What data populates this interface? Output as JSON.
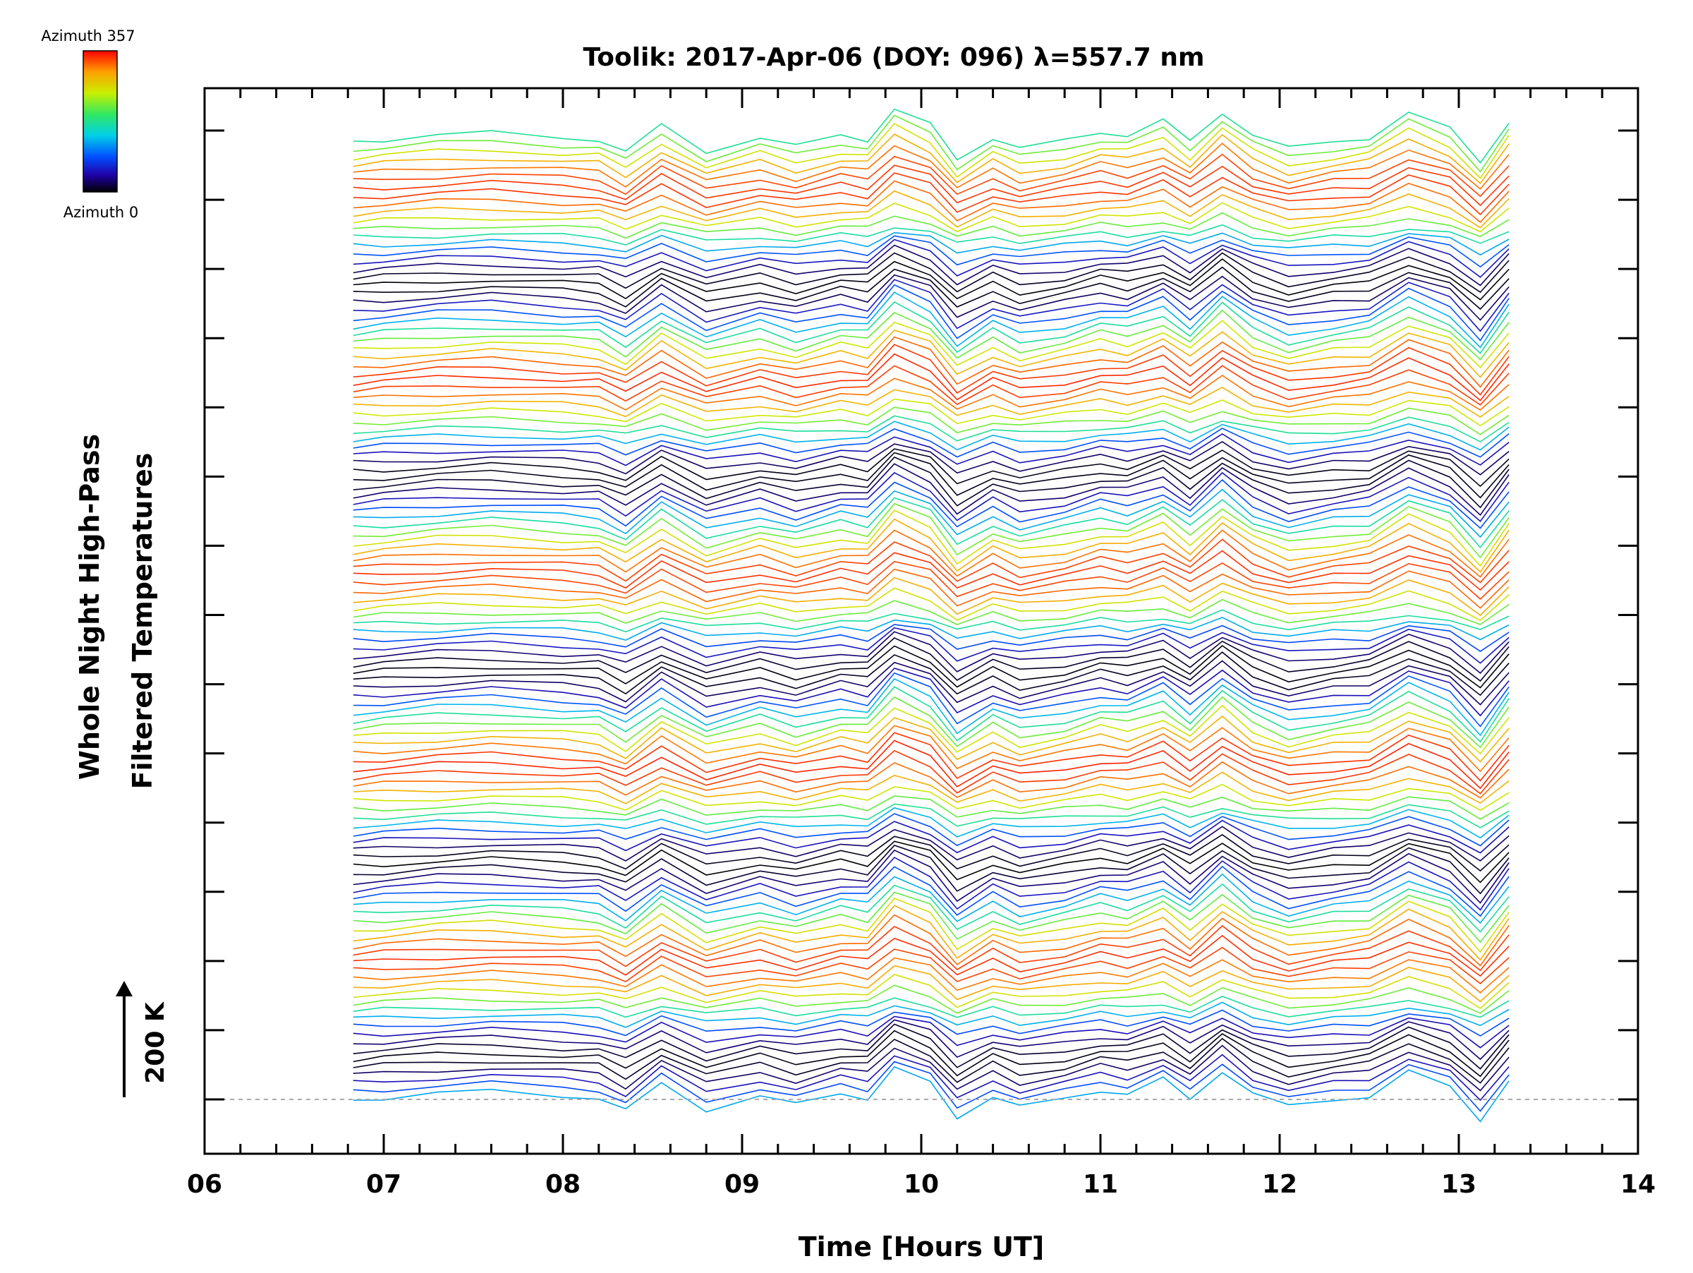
{
  "chart_data": {
    "type": "line",
    "title": "Toolik: 2017-Apr-06 (DOY: 096) λ=557.7 nm",
    "xlabel": "Time [Hours UT]",
    "ylabel_line1": "Whole Night High-Pass",
    "ylabel_line2": "Filtered Temperatures",
    "xlim": [
      6,
      14
    ],
    "x_tick_labels": [
      "06",
      "07",
      "08",
      "09",
      "10",
      "11",
      "12",
      "13",
      "14"
    ],
    "x_minor_step": 0.2,
    "data_time_range": [
      6.83,
      13.28
    ],
    "scale_bar_label": "200 K",
    "scale_bar_kelvin": 200,
    "colorbar": {
      "top_label": "Azimuth 357",
      "bottom_label": "Azimuth 0",
      "azimuth_min": 0,
      "azimuth_max": 357,
      "colormap": "rainbow (black-blue-cyan-green-yellow-red)"
    },
    "y_ticks_count": 15,
    "y_axis_labels_shown": false,
    "baseline_dashed": true,
    "key_times": [
      6.83,
      7.0,
      7.3,
      7.6,
      8.0,
      8.2,
      8.35,
      8.55,
      8.8,
      9.1,
      9.3,
      9.55,
      9.7,
      9.85,
      10.05,
      10.2,
      10.4,
      10.55,
      10.8,
      11.0,
      11.15,
      11.35,
      11.5,
      11.68,
      11.85,
      12.05,
      12.3,
      12.5,
      12.72,
      12.95,
      13.12,
      13.28
    ],
    "series_description": "Stacked high-pass filtered temperature traces, one per azimuth (0-357 deg), each offset vertically and colored by azimuth",
    "series_count": 120
  }
}
